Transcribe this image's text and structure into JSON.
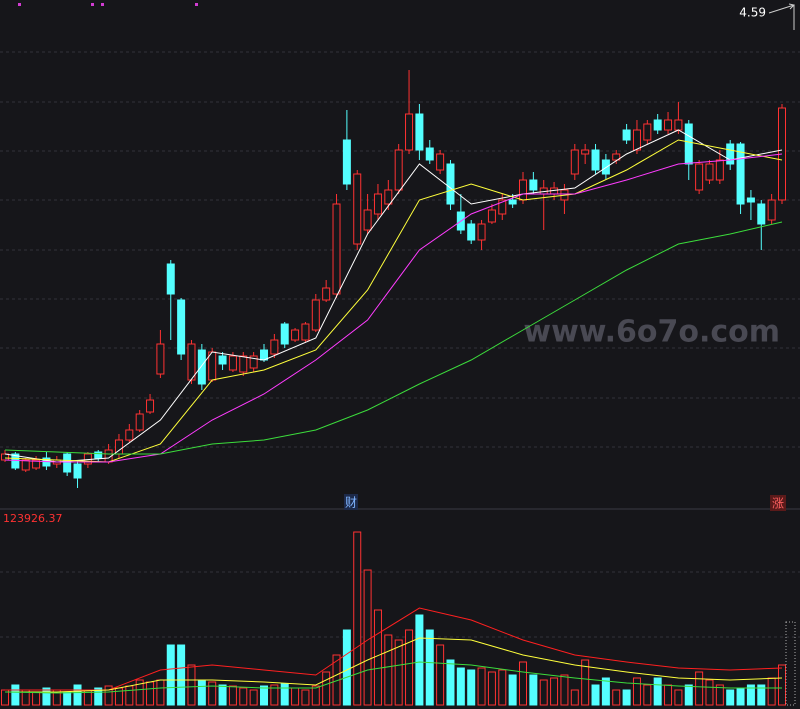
{
  "chart_data": [
    {
      "type": "candlestick",
      "ylim": [
        2.15,
        4.65
      ],
      "max_price": 4.59,
      "up_color": "#ff3232",
      "down_color": "#54ffff",
      "open": [
        2.35,
        2.38,
        2.3,
        2.31,
        2.36,
        2.33,
        2.38,
        2.33,
        2.33,
        2.39,
        2.34,
        2.38,
        2.45,
        2.5,
        2.59,
        2.78,
        3.33,
        3.15,
        2.75,
        2.9,
        2.75,
        2.87,
        2.8,
        2.79,
        2.81,
        2.9,
        2.88,
        3.03,
        2.95,
        2.95,
        3.0,
        3.15,
        3.18,
        3.95,
        3.43,
        3.5,
        3.58,
        3.63,
        3.7,
        3.9,
        4.08,
        3.91,
        3.8,
        3.83,
        3.59,
        3.53,
        3.45,
        3.54,
        3.58,
        3.65,
        3.65,
        3.75,
        3.68,
        3.68,
        3.65,
        3.78,
        3.88,
        3.9,
        3.85,
        3.85,
        4.0,
        3.9,
        3.95,
        4.05,
        4.0,
        4.0,
        4.03,
        3.7,
        3.75,
        3.75,
        3.93,
        3.93,
        3.66,
        3.63,
        3.55,
        3.65
      ],
      "close": [
        2.38,
        2.31,
        2.35,
        2.35,
        2.32,
        2.35,
        2.29,
        2.26,
        2.38,
        2.36,
        2.4,
        2.45,
        2.5,
        2.58,
        2.65,
        2.93,
        3.18,
        2.88,
        2.93,
        2.73,
        2.89,
        2.83,
        2.87,
        2.87,
        2.87,
        2.85,
        2.95,
        2.93,
        3.0,
        3.03,
        3.15,
        3.21,
        3.63,
        3.73,
        3.78,
        3.6,
        3.68,
        3.7,
        3.9,
        4.08,
        3.9,
        3.85,
        3.88,
        3.63,
        3.5,
        3.45,
        3.53,
        3.6,
        3.65,
        3.63,
        3.75,
        3.7,
        3.71,
        3.71,
        3.7,
        3.9,
        3.9,
        3.8,
        3.78,
        3.88,
        3.95,
        4.0,
        4.03,
        4.0,
        4.05,
        4.05,
        3.83,
        3.83,
        3.83,
        3.85,
        3.83,
        3.63,
        3.64,
        3.53,
        3.65,
        4.11
      ],
      "high": [
        2.4,
        2.39,
        2.36,
        2.37,
        2.39,
        2.37,
        2.39,
        2.35,
        2.39,
        2.4,
        2.43,
        2.48,
        2.53,
        2.6,
        2.68,
        3.0,
        3.35,
        3.16,
        2.95,
        2.93,
        2.91,
        2.89,
        2.89,
        2.89,
        2.89,
        2.93,
        2.98,
        3.04,
        3.01,
        3.04,
        3.18,
        3.25,
        3.68,
        4.1,
        3.8,
        3.68,
        3.73,
        3.75,
        3.93,
        4.3,
        4.13,
        3.95,
        3.9,
        3.85,
        3.68,
        3.55,
        3.55,
        3.63,
        3.68,
        3.68,
        3.79,
        3.79,
        3.75,
        3.74,
        3.73,
        3.93,
        3.93,
        3.93,
        3.88,
        3.9,
        4.03,
        4.05,
        4.05,
        4.08,
        4.09,
        4.14,
        4.05,
        3.85,
        3.85,
        3.9,
        3.95,
        3.94,
        3.7,
        3.65,
        3.68,
        4.13
      ],
      "low": [
        2.34,
        2.3,
        2.29,
        2.3,
        2.3,
        2.31,
        2.27,
        2.21,
        2.31,
        2.34,
        2.33,
        2.36,
        2.44,
        2.49,
        2.58,
        2.76,
        2.95,
        2.85,
        2.73,
        2.7,
        2.74,
        2.8,
        2.79,
        2.77,
        2.79,
        2.84,
        2.86,
        2.91,
        2.94,
        2.94,
        2.99,
        3.14,
        3.16,
        3.7,
        3.4,
        3.48,
        3.55,
        3.6,
        3.68,
        3.88,
        3.85,
        3.83,
        3.78,
        3.6,
        3.48,
        3.43,
        3.4,
        3.53,
        3.55,
        3.61,
        3.63,
        3.68,
        3.5,
        3.65,
        3.58,
        3.75,
        3.83,
        3.78,
        3.75,
        3.83,
        3.93,
        3.88,
        3.93,
        3.98,
        3.98,
        3.98,
        3.75,
        3.68,
        3.73,
        3.73,
        3.8,
        3.58,
        3.55,
        3.4,
        3.53,
        3.63
      ],
      "ma_x": [
        0,
        5,
        10,
        15,
        20,
        25,
        30,
        35,
        40,
        45,
        50,
        55,
        60,
        65,
        70,
        75
      ],
      "series": [
        {
          "color": "#ffffff",
          "values": [
            2.38,
            2.34,
            2.36,
            2.55,
            2.89,
            2.85,
            2.96,
            3.48,
            3.83,
            3.63,
            3.68,
            3.71,
            3.88,
            4.0,
            3.85,
            3.9
          ]
        },
        {
          "color": "#ffff3c",
          "values": [
            2.36,
            2.35,
            2.34,
            2.43,
            2.75,
            2.8,
            2.9,
            3.2,
            3.65,
            3.73,
            3.65,
            3.68,
            3.8,
            3.95,
            3.9,
            3.85
          ]
        },
        {
          "color": "#ff3cff",
          "values": [
            2.35,
            2.34,
            2.34,
            2.38,
            2.55,
            2.68,
            2.85,
            3.05,
            3.4,
            3.58,
            3.68,
            3.68,
            3.75,
            3.83,
            3.85,
            3.88
          ]
        },
        {
          "color": "#3cdc3c",
          "values": [
            2.4,
            2.39,
            2.38,
            2.38,
            2.43,
            2.45,
            2.5,
            2.6,
            2.73,
            2.85,
            3.0,
            3.15,
            3.3,
            3.43,
            3.48,
            3.54
          ]
        }
      ],
      "markers": [
        "财",
        "涨"
      ],
      "watermark": "www.6o7o.com"
    },
    {
      "type": "volume",
      "ylim": [
        0,
        123926.37
      ],
      "values": [
        9630,
        12840,
        9630,
        8350,
        10910,
        9630,
        8350,
        12840,
        9630,
        10910,
        12200,
        10910,
        12200,
        16050,
        14770,
        16050,
        38520,
        38520,
        25680,
        16050,
        14770,
        12840,
        12200,
        10910,
        9630,
        12200,
        12840,
        13480,
        10910,
        9630,
        12200,
        21190,
        32100,
        48150,
        111070,
        86670,
        61000,
        44940,
        41730,
        48150,
        57780,
        48150,
        38520,
        28890,
        23750,
        22470,
        23750,
        21190,
        22470,
        19260,
        27610,
        19260,
        16050,
        17330,
        19260,
        9630,
        28890,
        12840,
        17330,
        9630,
        9630,
        17330,
        12840,
        17330,
        12840,
        9630,
        12840,
        21190,
        16050,
        12840,
        9630,
        10910,
        12840,
        12840,
        17330,
        25680
      ],
      "ma_x": [
        0,
        5,
        10,
        15,
        20,
        25,
        30,
        35,
        40,
        45,
        50,
        55,
        60,
        65,
        70,
        75
      ],
      "series": [
        {
          "color": "#ff2020",
          "values": [
            9630,
            9630,
            9630,
            22470,
            25680,
            22470,
            19260,
            41730,
            62270,
            54570,
            41730,
            32100,
            27610,
            23750,
            22470,
            23750
          ]
        },
        {
          "color": "#ffff3c",
          "values": [
            8350,
            8350,
            9630,
            16050,
            16050,
            14770,
            12840,
            28890,
            43010,
            41730,
            32100,
            25680,
            21190,
            17330,
            16050,
            17330
          ]
        },
        {
          "color": "#3cdc3c",
          "values": [
            8350,
            7700,
            8350,
            10910,
            12200,
            10910,
            10910,
            22470,
            27610,
            25680,
            21190,
            17330,
            14120,
            12200,
            10910,
            10910
          ]
        }
      ]
    }
  ]
}
